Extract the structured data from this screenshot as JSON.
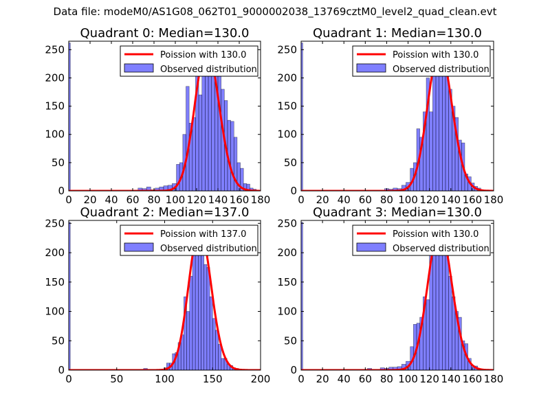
{
  "figure_title": "Data file: modeM0/AS1G08_062T01_9000002038_13769cztM0_level2_quad_clean.evt",
  "chart_data": [
    {
      "type": "bar",
      "title": "Quadrant 0: Median=130.0",
      "xlim": [
        0,
        180
      ],
      "ylim": [
        0,
        265
      ],
      "xticks": [
        0,
        20,
        40,
        60,
        80,
        100,
        120,
        140,
        160,
        180
      ],
      "yticks": [
        0,
        50,
        100,
        150,
        200,
        250
      ],
      "poisson_mean": 130.0,
      "legend": [
        "Poission with 130.0",
        "Observed distribution"
      ],
      "bins": [
        [
          0,
          1.5,
          262
        ],
        [
          65,
          69,
          5
        ],
        [
          69,
          73,
          4
        ],
        [
          73,
          77,
          7
        ],
        [
          77,
          81,
          2
        ],
        [
          81,
          85,
          5
        ],
        [
          85,
          89,
          7
        ],
        [
          89,
          93,
          9
        ],
        [
          93,
          97,
          10
        ],
        [
          97,
          101,
          13
        ],
        [
          101,
          104,
          47
        ],
        [
          104,
          107,
          50
        ],
        [
          107,
          110,
          100
        ],
        [
          110,
          113,
          185
        ],
        [
          113,
          116,
          120
        ],
        [
          116,
          119,
          130
        ],
        [
          119,
          122,
          215
        ],
        [
          122,
          125,
          170
        ],
        [
          125,
          128,
          230
        ],
        [
          128,
          131,
          252
        ],
        [
          131,
          134,
          210
        ],
        [
          134,
          137,
          205
        ],
        [
          137,
          140,
          230
        ],
        [
          140,
          143,
          210
        ],
        [
          143,
          146,
          180
        ],
        [
          146,
          149,
          160
        ],
        [
          149,
          152,
          125
        ],
        [
          152,
          155,
          123
        ],
        [
          155,
          158,
          95
        ],
        [
          158,
          161,
          50
        ],
        [
          161,
          164,
          40
        ],
        [
          164,
          167,
          13
        ],
        [
          167,
          170,
          12
        ],
        [
          170,
          173,
          5
        ],
        [
          173,
          176,
          3
        ]
      ]
    },
    {
      "type": "bar",
      "title": "Quadrant 1: Median=130.0",
      "xlim": [
        0,
        180
      ],
      "ylim": [
        0,
        265
      ],
      "xticks": [
        0,
        20,
        40,
        60,
        80,
        100,
        120,
        140,
        160,
        180
      ],
      "yticks": [
        0,
        50,
        100,
        150,
        200,
        250
      ],
      "poisson_mean": 130.0,
      "legend": [
        "Poission with 130.0",
        "Observed distribution"
      ],
      "bins": [
        [
          0,
          1.5,
          262
        ],
        [
          54,
          58,
          1
        ],
        [
          78,
          82,
          4
        ],
        [
          82,
          86,
          3
        ],
        [
          86,
          90,
          5
        ],
        [
          90,
          94,
          4
        ],
        [
          94,
          98,
          10
        ],
        [
          98,
          102,
          15
        ],
        [
          102,
          105,
          40
        ],
        [
          105,
          108,
          50
        ],
        [
          108,
          111,
          110
        ],
        [
          111,
          114,
          95
        ],
        [
          114,
          117,
          140
        ],
        [
          117,
          120,
          200
        ],
        [
          120,
          123,
          140
        ],
        [
          123,
          126,
          238
        ],
        [
          126,
          129,
          250
        ],
        [
          129,
          132,
          245
        ],
        [
          132,
          135,
          230
        ],
        [
          135,
          138,
          212
        ],
        [
          138,
          141,
          180
        ],
        [
          141,
          144,
          150
        ],
        [
          144,
          147,
          130
        ],
        [
          147,
          150,
          90
        ],
        [
          150,
          153,
          85
        ],
        [
          153,
          156,
          30
        ],
        [
          156,
          159,
          25
        ],
        [
          159,
          162,
          14
        ],
        [
          162,
          165,
          8
        ],
        [
          165,
          168,
          5
        ]
      ]
    },
    {
      "type": "bar",
      "title": "Quadrant 2: Median=137.0",
      "xlim": [
        0,
        200
      ],
      "ylim": [
        0,
        255
      ],
      "xticks": [
        0,
        50,
        100,
        150,
        200
      ],
      "yticks": [
        0,
        50,
        100,
        150,
        200,
        250
      ],
      "poisson_mean": 137.0,
      "legend": [
        "Poission with 137.0",
        "Observed distribution"
      ],
      "bins": [
        [
          0,
          1.6,
          252
        ],
        [
          78,
          82,
          3
        ],
        [
          99,
          102,
          4
        ],
        [
          102,
          105,
          12
        ],
        [
          105,
          108,
          12
        ],
        [
          108,
          111,
          28
        ],
        [
          111,
          114,
          30
        ],
        [
          114,
          117,
          47
        ],
        [
          117,
          120,
          60
        ],
        [
          120,
          123,
          125
        ],
        [
          123,
          126,
          100
        ],
        [
          126,
          129,
          160
        ],
        [
          129,
          132,
          240
        ],
        [
          132,
          135,
          235
        ],
        [
          135,
          138,
          230
        ],
        [
          138,
          141,
          225
        ],
        [
          141,
          144,
          180
        ],
        [
          144,
          147,
          175
        ],
        [
          147,
          150,
          125
        ],
        [
          150,
          153,
          88
        ],
        [
          153,
          156,
          68
        ],
        [
          156,
          159,
          44
        ],
        [
          159,
          162,
          20
        ],
        [
          162,
          165,
          20
        ],
        [
          165,
          168,
          10
        ],
        [
          168,
          171,
          8
        ],
        [
          171,
          174,
          4
        ],
        [
          174,
          177,
          3
        ],
        [
          177,
          180,
          2
        ]
      ]
    },
    {
      "type": "bar",
      "title": "Quadrant 3: Median=130.0",
      "xlim": [
        0,
        180
      ],
      "ylim": [
        0,
        255
      ],
      "xticks": [
        0,
        20,
        40,
        60,
        80,
        100,
        120,
        140,
        160,
        180
      ],
      "yticks": [
        0,
        50,
        100,
        150,
        200,
        250
      ],
      "poisson_mean": 130.0,
      "legend": [
        "Poission with 130.0",
        "Observed distribution"
      ],
      "bins": [
        [
          0,
          1.5,
          252
        ],
        [
          62,
          66,
          3
        ],
        [
          74,
          78,
          4
        ],
        [
          78,
          82,
          3
        ],
        [
          82,
          86,
          5
        ],
        [
          86,
          90,
          5
        ],
        [
          90,
          94,
          6
        ],
        [
          94,
          98,
          10
        ],
        [
          98,
          102,
          15
        ],
        [
          102,
          105,
          40
        ],
        [
          105,
          108,
          78
        ],
        [
          108,
          111,
          80
        ],
        [
          111,
          114,
          90
        ],
        [
          114,
          117,
          125
        ],
        [
          117,
          120,
          120
        ],
        [
          120,
          123,
          200
        ],
        [
          123,
          126,
          230
        ],
        [
          126,
          129,
          240
        ],
        [
          129,
          132,
          235
        ],
        [
          132,
          135,
          240
        ],
        [
          135,
          138,
          210
        ],
        [
          138,
          141,
          160
        ],
        [
          141,
          144,
          125
        ],
        [
          144,
          147,
          100
        ],
        [
          147,
          150,
          90
        ],
        [
          150,
          153,
          50
        ],
        [
          153,
          156,
          45
        ],
        [
          156,
          159,
          20
        ],
        [
          159,
          162,
          8
        ],
        [
          162,
          165,
          7
        ]
      ]
    }
  ]
}
